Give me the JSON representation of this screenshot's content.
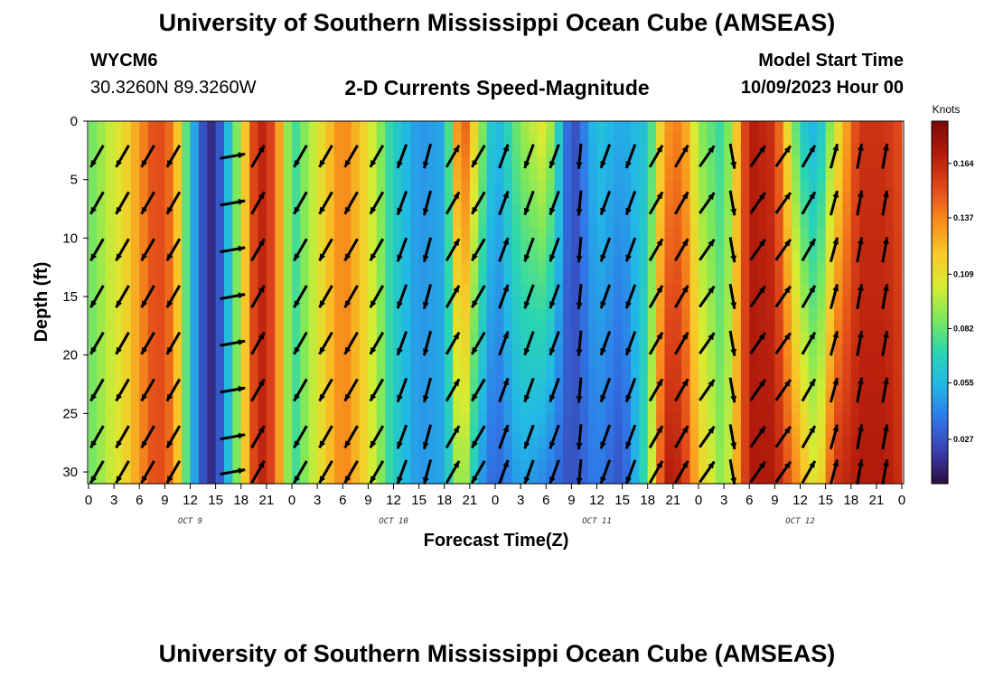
{
  "header": {
    "title": "University of Southern Mississippi Ocean Cube (AMSEAS)",
    "station_id": "WYCM6",
    "station_coords": "30.3260N  89.3260W",
    "subtitle": "2-D Currents Speed-Magnitude",
    "model_start_label": "Model Start Time",
    "model_start_time": "10/09/2023 Hour 00"
  },
  "footer": {
    "title": "University of Southern Mississippi Ocean Cube (AMSEAS)"
  },
  "chart_data": {
    "type": "heatmap",
    "title": "2-D Currents Speed-Magnitude",
    "xlabel": "Forecast Time(Z)",
    "ylabel": "Depth (ft)",
    "x_ticks": [
      "0",
      "3",
      "6",
      "9",
      "12",
      "15",
      "18",
      "21",
      "0",
      "3",
      "6",
      "9",
      "12",
      "15",
      "18",
      "21",
      "0",
      "3",
      "6",
      "9",
      "12",
      "15",
      "18",
      "21",
      "0",
      "3",
      "6",
      "9",
      "12",
      "15",
      "18",
      "21",
      "0"
    ],
    "date_labels": [
      "OCT 9",
      "OCT 10",
      "OCT 11",
      "OCT 12"
    ],
    "y_ticks": [
      "0",
      "5",
      "10",
      "15",
      "20",
      "25",
      "30"
    ],
    "ylim": [
      0,
      31
    ],
    "xlim_hours": [
      0,
      96
    ],
    "depth_levels_ft": [
      0,
      4,
      8,
      12,
      16,
      20,
      24,
      28,
      30
    ],
    "colorbar": {
      "title": "Knots",
      "labels": [
        "0.164",
        "0.137",
        "0.109",
        "0.082",
        "0.055",
        "0.027"
      ],
      "min": 0.005,
      "max": 0.185,
      "colors": [
        "#2a0f3f",
        "#3b3fb0",
        "#2f78e8",
        "#22b8e6",
        "#2ad6b0",
        "#7ee85a",
        "#d8ec32",
        "#f8c828",
        "#f88a1c",
        "#e0481a",
        "#b41c0c",
        "#7a0808"
      ]
    },
    "speed_profile_knots": [
      {
        "hour": 0,
        "surface": 0.082,
        "bottom": 0.082
      },
      {
        "hour": 4,
        "surface": 0.11,
        "bottom": 0.11
      },
      {
        "hour": 8,
        "surface": 0.155,
        "bottom": 0.155
      },
      {
        "hour": 10,
        "surface": 0.14,
        "bottom": 0.14
      },
      {
        "hour": 12,
        "surface": 0.06,
        "bottom": 0.06
      },
      {
        "hour": 14,
        "surface": 0.015,
        "bottom": 0.015
      },
      {
        "hour": 15,
        "surface": 0.015,
        "bottom": 0.015
      },
      {
        "hour": 17,
        "surface": 0.07,
        "bottom": 0.07
      },
      {
        "hour": 20,
        "surface": 0.17,
        "bottom": 0.17
      },
      {
        "hour": 22,
        "surface": 0.15,
        "bottom": 0.15
      },
      {
        "hour": 24,
        "surface": 0.07,
        "bottom": 0.07
      },
      {
        "hour": 27,
        "surface": 0.105,
        "bottom": 0.105
      },
      {
        "hour": 30,
        "surface": 0.14,
        "bottom": 0.14
      },
      {
        "hour": 33,
        "surface": 0.11,
        "bottom": 0.11
      },
      {
        "hour": 36,
        "surface": 0.065,
        "bottom": 0.065
      },
      {
        "hour": 39,
        "surface": 0.045,
        "bottom": 0.045
      },
      {
        "hour": 42,
        "surface": 0.05,
        "bottom": 0.05
      },
      {
        "hour": 44,
        "surface": 0.16,
        "bottom": 0.105
      },
      {
        "hour": 46,
        "surface": 0.1,
        "bottom": 0.05
      },
      {
        "hour": 48,
        "surface": 0.05,
        "bottom": 0.03
      },
      {
        "hour": 51,
        "surface": 0.09,
        "bottom": 0.05
      },
      {
        "hour": 54,
        "surface": 0.11,
        "bottom": 0.04
      },
      {
        "hour": 57,
        "surface": 0.02,
        "bottom": 0.025
      },
      {
        "hour": 60,
        "surface": 0.06,
        "bottom": 0.04
      },
      {
        "hour": 63,
        "surface": 0.05,
        "bottom": 0.025
      },
      {
        "hour": 66,
        "surface": 0.06,
        "bottom": 0.08
      },
      {
        "hour": 68,
        "surface": 0.13,
        "bottom": 0.17
      },
      {
        "hour": 70,
        "surface": 0.14,
        "bottom": 0.165
      },
      {
        "hour": 72,
        "surface": 0.09,
        "bottom": 0.12
      },
      {
        "hour": 75,
        "surface": 0.07,
        "bottom": 0.085
      },
      {
        "hour": 78,
        "surface": 0.17,
        "bottom": 0.17
      },
      {
        "hour": 81,
        "surface": 0.16,
        "bottom": 0.17
      },
      {
        "hour": 84,
        "surface": 0.065,
        "bottom": 0.13
      },
      {
        "hour": 86,
        "surface": 0.05,
        "bottom": 0.1
      },
      {
        "hour": 88,
        "surface": 0.1,
        "bottom": 0.16
      },
      {
        "hour": 91,
        "surface": 0.16,
        "bottom": 0.17
      },
      {
        "hour": 94,
        "surface": 0.16,
        "bottom": 0.17
      },
      {
        "hour": 96,
        "surface": 0.15,
        "bottom": 0.16
      }
    ],
    "arrow_columns": [
      {
        "hour": 1,
        "dir_deg": 210
      },
      {
        "hour": 4,
        "dir_deg": 210
      },
      {
        "hour": 7,
        "dir_deg": 210
      },
      {
        "hour": 10,
        "dir_deg": 210
      },
      {
        "hour": 17,
        "dir_deg": 80
      },
      {
        "hour": 20,
        "dir_deg": 30
      },
      {
        "hour": 25,
        "dir_deg": 210
      },
      {
        "hour": 28,
        "dir_deg": 210
      },
      {
        "hour": 31,
        "dir_deg": 210
      },
      {
        "hour": 34,
        "dir_deg": 210
      },
      {
        "hour": 37,
        "dir_deg": 200
      },
      {
        "hour": 40,
        "dir_deg": 195
      },
      {
        "hour": 43,
        "dir_deg": 30
      },
      {
        "hour": 46,
        "dir_deg": 210
      },
      {
        "hour": 49,
        "dir_deg": 20
      },
      {
        "hour": 52,
        "dir_deg": 200
      },
      {
        "hour": 55,
        "dir_deg": 200
      },
      {
        "hour": 58,
        "dir_deg": 185
      },
      {
        "hour": 61,
        "dir_deg": 200
      },
      {
        "hour": 64,
        "dir_deg": 200
      },
      {
        "hour": 67,
        "dir_deg": 30
      },
      {
        "hour": 70,
        "dir_deg": 30
      },
      {
        "hour": 73,
        "dir_deg": 35
      },
      {
        "hour": 76,
        "dir_deg": 170
      },
      {
        "hour": 79,
        "dir_deg": 35
      },
      {
        "hour": 82,
        "dir_deg": 35
      },
      {
        "hour": 85,
        "dir_deg": 30
      },
      {
        "hour": 88,
        "dir_deg": 15
      },
      {
        "hour": 91,
        "dir_deg": 10
      },
      {
        "hour": 94,
        "dir_deg": 10
      }
    ],
    "arrow_depths_ft": [
      3,
      7,
      11,
      15,
      19,
      23,
      27,
      30
    ]
  }
}
